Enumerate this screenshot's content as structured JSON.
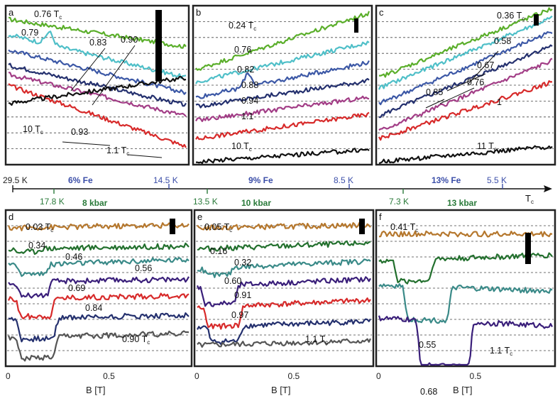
{
  "colors": {
    "green": "#5aae2a",
    "cyan": "#4fbfc8",
    "blue": "#3c58a6",
    "navy": "#24306e",
    "magenta": "#a23d86",
    "red": "#d72a2a",
    "black": "#111111",
    "brown": "#b5772d",
    "darkgreen": "#23702e",
    "teal": "#3a8a88",
    "purple": "#3a1f7a",
    "gray": "#555555",
    "axis_blue": "#3b4ea8",
    "axis_green": "#2a7a3a"
  },
  "scale": {
    "tc_label": "T",
    "tc_sub": "c",
    "fe_labels": [
      {
        "text": "29.5 K",
        "value": 29.5
      },
      {
        "text": "14.5 K",
        "value": 14.5
      },
      {
        "text": "8.5 K",
        "value": 8.5
      },
      {
        "text": "5.5 K",
        "value": 5.5
      }
    ],
    "fe_groups": [
      "6% Fe",
      "9% Fe",
      "13% Fe"
    ],
    "p_labels": [
      {
        "text": "17.8 K",
        "value": 17.8
      },
      {
        "text": "13.5 K",
        "value": 13.5
      },
      {
        "text": "7.3 K",
        "value": 7.3
      }
    ],
    "p_groups": [
      "8 kbar",
      "10 kbar",
      "13 kbar"
    ]
  },
  "chart_data": [
    {
      "type": "line",
      "panel": "a",
      "group": "6% Fe",
      "series": [
        {
          "name": "0.76 Tc",
          "label": "0.76",
          "t": 0.76,
          "color": "green",
          "y0": 0.93,
          "y1": 0.75,
          "dip": null
        },
        {
          "name": "0.79 Tc",
          "label": "0.79",
          "t": 0.79,
          "color": "cyan",
          "y0": 0.83,
          "y1": 0.55,
          "dip": [
            0.23,
            0.08
          ]
        },
        {
          "name": "0.83 Tc",
          "label": "0.83",
          "t": 0.83,
          "color": "blue",
          "y0": 0.73,
          "y1": 0.45,
          "dip": null
        },
        {
          "name": "0.90 Tc",
          "label": "0.90",
          "t": 0.9,
          "color": "navy",
          "y0": 0.63,
          "y1": 0.37,
          "dip": null
        },
        {
          "name": "0.93 Tc",
          "label": "0.93",
          "t": 0.93,
          "color": "magenta",
          "y0": 0.57,
          "y1": 0.3,
          "dip": null
        },
        {
          "name": "1.1 Tc",
          "label": "1.1",
          "t": 1.1,
          "color": "red",
          "y0": 0.5,
          "y1": 0.1,
          "dip": null
        },
        {
          "name": "10 Tc",
          "label": "10",
          "t": 10,
          "color": "black",
          "y0": 0.38,
          "y1": 0.55,
          "dip": null
        }
      ],
      "labels": [
        {
          "text": "0.76",
          "tc": true
        },
        {
          "text": "0.79",
          "tc": false
        },
        {
          "text": "0.83",
          "tc": false
        },
        {
          "text": "0.90",
          "tc": false
        },
        {
          "text": "10",
          "tc": true
        },
        {
          "text": "0.93",
          "tc": false
        },
        {
          "text": "1.1",
          "tc": true
        }
      ]
    },
    {
      "type": "line",
      "panel": "b",
      "group": "9% Fe",
      "series": [
        {
          "name": "0.24 Tc",
          "label": "0.24",
          "t": 0.24,
          "color": "green",
          "y0": 0.6,
          "y1": 0.97,
          "dip": null
        },
        {
          "name": "0.76 Tc",
          "label": "0.76",
          "t": 0.76,
          "color": "cyan",
          "y0": 0.52,
          "y1": 0.78,
          "dip": null
        },
        {
          "name": "0.82 Tc",
          "label": "0.82",
          "t": 0.82,
          "color": "blue",
          "y0": 0.42,
          "y1": 0.65,
          "dip": [
            0.3,
            0.09
          ]
        },
        {
          "name": "0.88 Tc",
          "label": "0.88",
          "t": 0.88,
          "color": "navy",
          "y0": 0.36,
          "y1": 0.53,
          "dip": null
        },
        {
          "name": "0.94 Tc",
          "label": "0.94",
          "t": 0.94,
          "color": "magenta",
          "y0": 0.27,
          "y1": 0.42,
          "dip": null
        },
        {
          "name": "1.1 Tc",
          "label": "1.1",
          "t": 1.1,
          "color": "red",
          "y0": 0.15,
          "y1": 0.31,
          "dip": null
        },
        {
          "name": "10 Tc",
          "label": "10",
          "t": 10,
          "color": "black",
          "y0": 0.0,
          "y1": 0.08,
          "dip": null
        }
      ],
      "labels": [
        {
          "text": "0.24",
          "tc": true
        },
        {
          "text": "0.76",
          "tc": false
        },
        {
          "text": "0.82",
          "tc": false
        },
        {
          "text": "0.88",
          "tc": false
        },
        {
          "text": "0.94",
          "tc": false
        },
        {
          "text": "1.1",
          "tc": false
        },
        {
          "text": "10",
          "tc": true
        }
      ]
    },
    {
      "type": "line",
      "panel": "c",
      "group": "13% Fe",
      "series": [
        {
          "name": "0.36 Tc",
          "label": "0.36",
          "t": 0.36,
          "color": "green",
          "y0": 0.55,
          "y1": 1.0,
          "dip": null
        },
        {
          "name": "0.58 Tc",
          "label": "0.58",
          "t": 0.58,
          "color": "cyan",
          "y0": 0.48,
          "y1": 0.94,
          "dip": null
        },
        {
          "name": "0.67 Tc",
          "label": "0.67",
          "t": 0.67,
          "color": "blue",
          "y0": 0.38,
          "y1": 0.85,
          "dip": null
        },
        {
          "name": "0.76 Tc",
          "label": "0.76",
          "t": 0.76,
          "color": "navy",
          "y0": 0.3,
          "y1": 0.76,
          "dip": null
        },
        {
          "name": "0.85 Tc",
          "label": "0.85",
          "t": 0.85,
          "color": "magenta",
          "y0": 0.2,
          "y1": 0.66,
          "dip": null
        },
        {
          "name": "1 Tc",
          "label": "1",
          "t": 1,
          "color": "red",
          "y0": 0.15,
          "y1": 0.52,
          "dip": null
        },
        {
          "name": "11 Tc",
          "label": "11",
          "t": 11,
          "color": "black",
          "y0": 0.0,
          "y1": 0.1,
          "dip": null
        }
      ],
      "labels": [
        {
          "text": "0.36",
          "tc": true
        },
        {
          "text": "0.58",
          "tc": false
        },
        {
          "text": "0.67",
          "tc": false
        },
        {
          "text": "0.76",
          "tc": false
        },
        {
          "text": "0.85",
          "tc": false
        },
        {
          "text": "1",
          "tc": false
        },
        {
          "text": "11",
          "tc": true
        }
      ]
    },
    {
      "type": "line",
      "panel": "d",
      "group": "8 kbar",
      "xlabel": "B [T]",
      "xticks": [
        "0",
        "0.5"
      ],
      "xlim": [
        0,
        0.9
      ],
      "series": [
        {
          "name": "0.03 Tc",
          "label": "0.03",
          "t": 0.03,
          "color": "brown",
          "y0": 0.9,
          "y1": 0.92,
          "dip": null
        },
        {
          "name": "0.34 Tc",
          "label": "0.34",
          "t": 0.34,
          "color": "darkgreen",
          "y0": 0.76,
          "y1": 0.78,
          "dip": [
            0.1,
            0.02
          ]
        },
        {
          "name": "0.46 Tc",
          "label": "0.46",
          "t": 0.46,
          "color": "teal",
          "y0": 0.65,
          "y1": 0.69,
          "dip": [
            0.14,
            0.06
          ]
        },
        {
          "name": "0.56 Tc",
          "label": "0.56",
          "t": 0.56,
          "color": "purple",
          "y0": 0.54,
          "y1": 0.56,
          "dip": [
            0.14,
            0.09
          ]
        },
        {
          "name": "0.69 Tc",
          "label": "0.69",
          "t": 0.69,
          "color": "red",
          "y0": 0.43,
          "y1": 0.45,
          "dip": [
            0.15,
            0.12
          ]
        },
        {
          "name": "0.84 Tc",
          "label": "0.84",
          "t": 0.84,
          "color": "navy",
          "y0": 0.3,
          "y1": 0.32,
          "dip": [
            0.16,
            0.14
          ]
        },
        {
          "name": "0.90 Tc",
          "label": "0.90",
          "t": 0.9,
          "color": "gray",
          "y0": 0.17,
          "y1": 0.2,
          "dip": [
            0.16,
            0.14
          ]
        }
      ],
      "labels": [
        {
          "text": "0.03",
          "tc": true
        },
        {
          "text": "0.34",
          "tc": false
        },
        {
          "text": "0.46",
          "tc": false
        },
        {
          "text": "0.56",
          "tc": false
        },
        {
          "text": "0.69",
          "tc": false
        },
        {
          "text": "0.84",
          "tc": false
        },
        {
          "text": "0.90",
          "tc": true
        }
      ]
    },
    {
      "type": "line",
      "panel": "e",
      "group": "10 kbar",
      "xlabel": "B [T]",
      "xticks": [
        "0",
        "0.5"
      ],
      "xlim": [
        0,
        0.9
      ],
      "series": [
        {
          "name": "0.05 Tc",
          "label": "0.05",
          "t": 0.05,
          "color": "brown",
          "y0": 0.9,
          "y1": 0.92,
          "dip": null
        },
        {
          "name": "0.16 Tc",
          "label": "0.16",
          "t": 0.16,
          "color": "darkgreen",
          "y0": 0.76,
          "y1": 0.8,
          "dip": null
        },
        {
          "name": "0.32 Tc",
          "label": "0.32",
          "t": 0.32,
          "color": "teal",
          "y0": 0.63,
          "y1": 0.68,
          "dip": [
            0.12,
            0.05
          ]
        },
        {
          "name": "0.60 Tc",
          "label": "0.60",
          "t": 0.6,
          "color": "purple",
          "y0": 0.51,
          "y1": 0.56,
          "dip": [
            0.13,
            0.12
          ]
        },
        {
          "name": "0.91 Tc",
          "label": "0.91",
          "t": 0.91,
          "color": "red",
          "y0": 0.37,
          "y1": 0.42,
          "dip": [
            0.15,
            0.13
          ]
        },
        {
          "name": "0.97 Tc",
          "label": "0.97",
          "t": 0.97,
          "color": "navy",
          "y0": 0.24,
          "y1": 0.28,
          "dip": [
            0.16,
            0.1
          ]
        },
        {
          "name": "1.1 Tc",
          "label": "1.1",
          "t": 1.1,
          "color": "gray",
          "y0": 0.12,
          "y1": 0.15,
          "dip": null
        }
      ],
      "labels": [
        {
          "text": "0.05",
          "tc": true
        },
        {
          "text": "0.16",
          "tc": false
        },
        {
          "text": "0.32",
          "tc": false
        },
        {
          "text": "0.60",
          "tc": false
        },
        {
          "text": "0.91",
          "tc": false
        },
        {
          "text": "0.97",
          "tc": false
        },
        {
          "text": "1.1",
          "tc": true
        }
      ]
    },
    {
      "type": "line",
      "panel": "f",
      "group": "13 kbar",
      "xlabel": "B [T]",
      "xticks": [
        "0",
        "0.5"
      ],
      "xlim": [
        0,
        0.9
      ],
      "series": [
        {
          "name": "0.41 Tc",
          "label": "0.41",
          "t": 0.41,
          "color": "brown",
          "y0": 0.86,
          "y1": 0.86,
          "dip": null
        },
        {
          "name": "0.55 Tc",
          "label": "0.55",
          "t": 0.55,
          "color": "darkgreen",
          "y0": 0.68,
          "y1": 0.72,
          "dip": [
            0.2,
            0.14
          ]
        },
        {
          "name": "0.68 Tc",
          "label": "0.68",
          "t": 0.68,
          "color": "teal",
          "y0": 0.52,
          "y1": 0.48,
          "dip": [
            0.28,
            0.22
          ]
        },
        {
          "name": "1.1 Tc",
          "label": "1.1",
          "t": 1.1,
          "color": "purple",
          "y0": 0.3,
          "y1": 0.25,
          "dip": [
            0.38,
            0.3
          ]
        }
      ],
      "labels": [
        {
          "text": "0.41",
          "tc": true
        },
        {
          "text": "0.55",
          "tc": false
        },
        {
          "text": "0.68",
          "tc": false
        },
        {
          "text": "1.1",
          "tc": true
        }
      ]
    }
  ]
}
